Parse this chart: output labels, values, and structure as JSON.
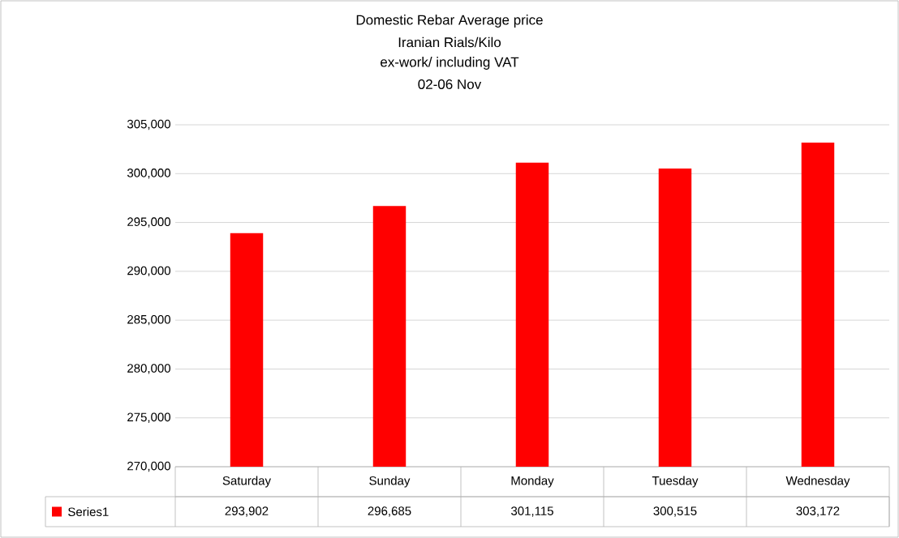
{
  "chart_data": {
    "type": "bar",
    "title": "Domestic Rebar Average  price",
    "subtitle": "Iranian Rials/Kilo",
    "annotations": [
      "ex-work/ including VAT",
      "02-06 Nov"
    ],
    "categories": [
      "Saturday",
      "Sunday",
      "Monday",
      "Tuesday",
      "Wednesday"
    ],
    "series": [
      {
        "name": "Series1",
        "color": "#ff0000",
        "values": [
          293902,
          296685,
          301115,
          300515,
          303172
        ],
        "value_labels": [
          "293,902",
          "296,685",
          "301,115",
          "300,515",
          "303,172"
        ]
      }
    ],
    "ylim": [
      270000,
      305000
    ],
    "yticks": [
      {
        "value": 270000,
        "label": "270,000"
      },
      {
        "value": 275000,
        "label": "275,000"
      },
      {
        "value": 280000,
        "label": "280,000"
      },
      {
        "value": 285000,
        "label": "285,000"
      },
      {
        "value": 290000,
        "label": "290,000"
      },
      {
        "value": 295000,
        "label": "295,000"
      },
      {
        "value": 300000,
        "label": "300,000"
      },
      {
        "value": 305000,
        "label": "305,000"
      }
    ],
    "grid": "y",
    "legend": "bottom"
  }
}
